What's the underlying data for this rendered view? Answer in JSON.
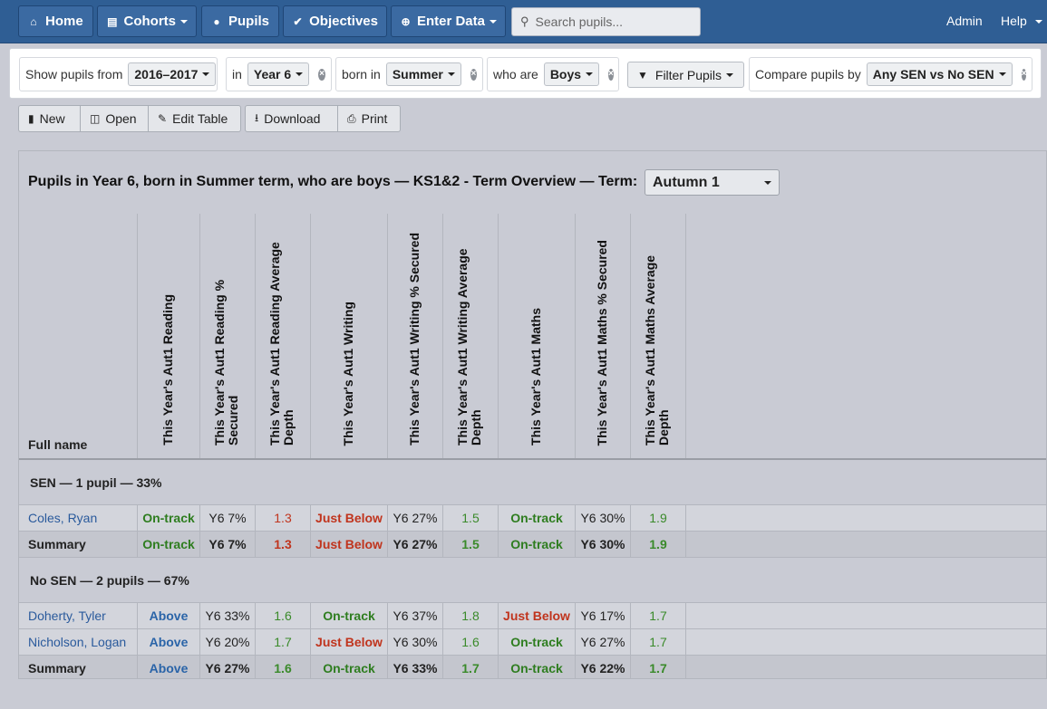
{
  "nav": {
    "home": "Home",
    "cohorts": "Cohorts",
    "pupils": "Pupils",
    "objectives": "Objectives",
    "enter_data": "Enter Data",
    "search_placeholder": "Search pupils...",
    "admin": "Admin",
    "help": "Help"
  },
  "filters": {
    "show_from_label": "Show pupils from",
    "show_from_value": "2016–2017",
    "in_label": "in",
    "in_value": "Year 6",
    "born_label": "born in",
    "born_value": "Summer",
    "who_label": "who are",
    "who_value": "Boys",
    "filter_button": "Filter Pupils",
    "compare_label": "Compare pupils by",
    "compare_value": "Any SEN vs No SEN"
  },
  "toolbar": {
    "new": "New",
    "open": "Open",
    "edit_table": "Edit Table",
    "download": "Download",
    "print": "Print"
  },
  "report": {
    "title": "Pupils in Year 6, born in Summer term, who are boys — KS1&2 - Term Overview — Term:",
    "term_value": "Autumn 1"
  },
  "table": {
    "name_header": "Full name",
    "headers": [
      "This Year's Aut1 Reading",
      "This Year's Aut1 Reading % Secured",
      "This Year's Aut1 Reading Average Depth",
      "This Year's Aut1 Writing",
      "This Year's Aut1 Writing %  Secured",
      "This Year's Aut1 Writing Average Depth",
      "This Year's Aut1 Maths",
      "This Year's Aut1 Maths % Secured",
      "This Year's Aut1 Maths Average Depth"
    ],
    "groups": [
      {
        "label": "SEN — 1 pupil — 33%",
        "rows": [
          {
            "name": "Coles, Ryan",
            "cells": [
              "On-track",
              "Y6 7%",
              "1.3",
              "Just Below",
              "Y6 27%",
              "1.5",
              "On-track",
              "Y6 30%",
              "1.9"
            ]
          }
        ],
        "summary": {
          "name": "Summary",
          "cells": [
            "On-track",
            "Y6 7%",
            "1.3",
            "Just Below",
            "Y6 27%",
            "1.5",
            "On-track",
            "Y6 30%",
            "1.9"
          ]
        }
      },
      {
        "label": "No SEN — 2 pupils — 67%",
        "rows": [
          {
            "name": "Doherty, Tyler",
            "cells": [
              "Above",
              "Y6 33%",
              "1.6",
              "On-track",
              "Y6 37%",
              "1.8",
              "Just Below",
              "Y6 17%",
              "1.7"
            ]
          },
          {
            "name": "Nicholson, Logan",
            "cells": [
              "Above",
              "Y6 20%",
              "1.7",
              "Just Below",
              "Y6 30%",
              "1.6",
              "On-track",
              "Y6 27%",
              "1.7"
            ]
          }
        ],
        "summary": {
          "name": "Summary",
          "cells": [
            "Above",
            "Y6 27%",
            "1.6",
            "On-track",
            "Y6 33%",
            "1.7",
            "On-track",
            "Y6 22%",
            "1.7"
          ]
        }
      }
    ]
  },
  "colors": {
    "on_track": "#2e7d1f",
    "just_below": "#c0341d",
    "above": "#2a64a8",
    "navbar": "#2f5e94"
  },
  "icons": {
    "home": "home-icon",
    "cohorts": "bar-chart-icon",
    "pupils": "user-icon",
    "objectives": "check-circle-icon",
    "enter_data": "plus-circle-icon",
    "search": "search-icon",
    "filter": "filter-icon",
    "new": "file-icon",
    "open": "folder-open-icon",
    "edit": "pencil-icon",
    "download": "download-icon",
    "print": "print-icon"
  }
}
